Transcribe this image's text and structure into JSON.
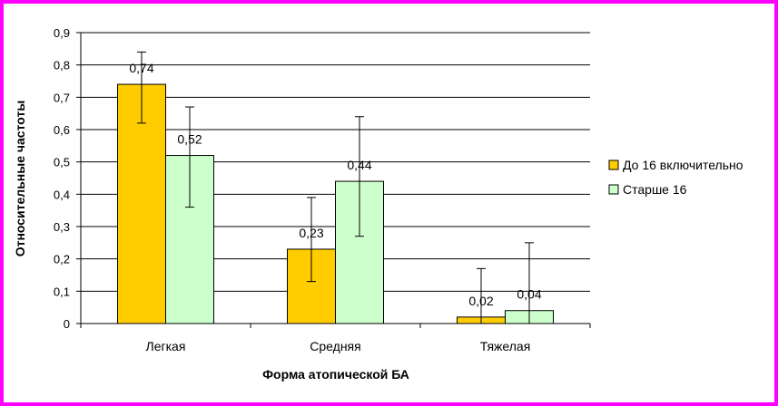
{
  "chart_data": {
    "type": "bar",
    "categories": [
      "Легкая",
      "Средняя",
      "Тяжелая"
    ],
    "series": [
      {
        "name": "До 16 включительно",
        "values": [
          0.74,
          0.23,
          0.02
        ],
        "value_labels": [
          "0,74",
          "0,23",
          "0,02"
        ],
        "error_low": [
          0.62,
          0.13,
          0.0
        ],
        "error_high": [
          0.84,
          0.39,
          0.17
        ],
        "color": "#ffcc00"
      },
      {
        "name": "Старше 16",
        "values": [
          0.52,
          0.44,
          0.04
        ],
        "value_labels": [
          "0,52",
          "0,44",
          "0,04"
        ],
        "error_low": [
          0.36,
          0.27,
          0.0
        ],
        "error_high": [
          0.67,
          0.64,
          0.25
        ],
        "color": "#ccffcc"
      }
    ],
    "xlabel": "Форма атопической БА",
    "ylabel": "Относительные частоты",
    "ylim": [
      0,
      0.9
    ],
    "yticks": [
      0,
      0.1,
      0.2,
      0.3,
      0.4,
      0.5,
      0.6,
      0.7,
      0.8,
      0.9
    ],
    "ytick_labels": [
      "0",
      "0,1",
      "0,2",
      "0,3",
      "0,4",
      "0,5",
      "0,6",
      "0,7",
      "0,8",
      "0,9"
    ],
    "grid": true,
    "legend_position": "right"
  },
  "colors": {
    "border": "#ff00ff",
    "grid": "#000000"
  }
}
